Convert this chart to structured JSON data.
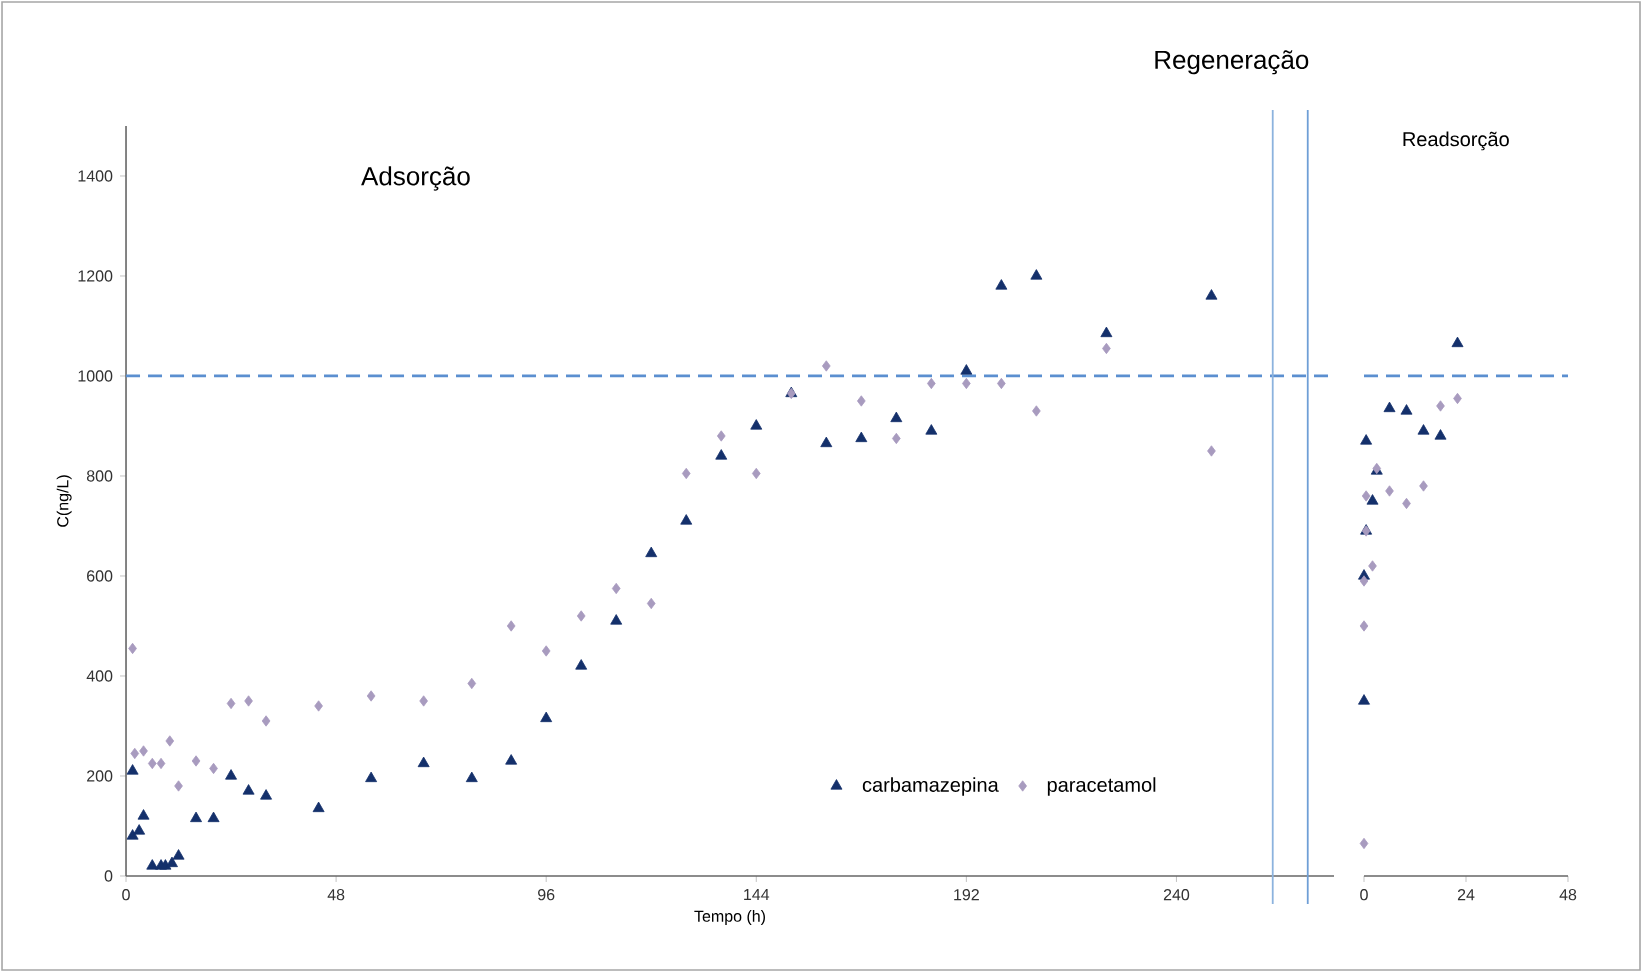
{
  "chart_data": [
    {
      "type": "scatter",
      "xlabel": "Tempo (h)",
      "ylabel": "C(ng/L)",
      "xlim": [
        0,
        276
      ],
      "xticks": [
        0,
        48,
        96,
        144,
        192,
        240
      ],
      "ylim": [
        0,
        1500
      ],
      "yticks": [
        0,
        200,
        400,
        600,
        800,
        1000,
        1200,
        1400
      ],
      "legend": "bottom",
      "series": [
        {
          "name": "carbamazepina",
          "color": "#14306b",
          "marker": "triangle",
          "x": [
            1.5,
            1.5,
            3,
            4,
            6,
            8,
            9,
            10.5,
            12,
            16,
            20,
            24,
            28,
            32,
            44,
            56,
            68,
            79,
            88,
            96,
            104,
            112,
            120,
            128,
            136,
            144,
            152,
            160,
            168,
            176,
            184,
            192,
            200,
            208,
            224,
            248
          ],
          "values": [
            210,
            80,
            90,
            120,
            20,
            20,
            20,
            25,
            40,
            115,
            115,
            200,
            170,
            160,
            135,
            195,
            225,
            195,
            230,
            315,
            420,
            510,
            645,
            710,
            840,
            900,
            965,
            865,
            875,
            915,
            890,
            1010,
            1180,
            1200,
            1085,
            1160
          ]
        },
        {
          "name": "paracetamol",
          "color": "#a89bbf",
          "marker": "diamond",
          "x": [
            1.5,
            2,
            4,
            6,
            8,
            10,
            12,
            16,
            20,
            24,
            28,
            32,
            44,
            56,
            68,
            79,
            88,
            96,
            104,
            112,
            120,
            128,
            136,
            144,
            152,
            160,
            168,
            176,
            184,
            192,
            200,
            208,
            224,
            248
          ],
          "values": [
            455,
            245,
            250,
            225,
            225,
            270,
            180,
            230,
            215,
            345,
            350,
            310,
            340,
            360,
            350,
            385,
            500,
            450,
            520,
            575,
            545,
            805,
            880,
            805,
            965,
            1020,
            950,
            875,
            985,
            985,
            985,
            930,
            1055,
            850
          ]
        }
      ],
      "ref_lines": [
        {
          "axis": "y",
          "value": 1000,
          "color": "#5b8fd0",
          "line_style": "dashed"
        },
        {
          "axis": "x",
          "value": 262,
          "color": "#8cb3de",
          "line_style": "solid"
        },
        {
          "axis": "x",
          "value": 270,
          "color": "#6f9fd6",
          "line_style": "solid"
        }
      ],
      "annotations": [
        "Adsorção",
        "Regeneração"
      ]
    },
    {
      "type": "scatter",
      "xlim": [
        0,
        48
      ],
      "xticks": [
        0,
        24,
        48
      ],
      "ylim": [
        0,
        1400
      ],
      "yticks": [
        0,
        200,
        400,
        600,
        800,
        1000,
        1200,
        1400
      ],
      "tick_labels": "x",
      "series": [
        {
          "color": "#14306b",
          "marker": "triangle",
          "x": [
            0,
            0,
            0.5,
            0.5,
            2,
            3,
            6,
            10,
            14,
            18,
            22
          ],
          "values": [
            350,
            600,
            690,
            870,
            750,
            810,
            935,
            930,
            890,
            880,
            1065
          ]
        },
        {
          "color": "#a89bbf",
          "marker": "diamond",
          "x": [
            0,
            0,
            0,
            0.5,
            0.5,
            2,
            3,
            6,
            10,
            14,
            18,
            22
          ],
          "values": [
            65,
            500,
            590,
            690,
            760,
            620,
            815,
            770,
            745,
            780,
            940,
            955
          ]
        }
      ],
      "ref_lines": [
        {
          "axis": "y",
          "value": 1000,
          "color": "#5b8fd0",
          "line_style": "dashed"
        }
      ],
      "annotations": [
        "Readsorção"
      ]
    }
  ]
}
